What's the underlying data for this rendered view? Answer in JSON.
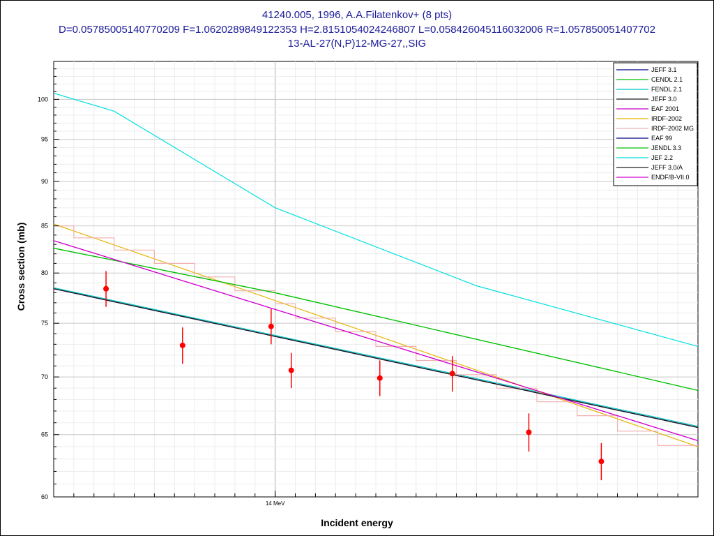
{
  "chart_data": {
    "type": "line",
    "title": "41240.005, 1996, A.A.Filatenkov+ (8 pts)",
    "subtitle": "D=0.05785005140770209 F=1.0620289849122353 H=2.8151054024246807 L=0.058426045116032006 R=1.057850051407702",
    "subtitle2": "13-AL-27(N,P)12-MG-27,,SIG",
    "xlabel": "Incident energy",
    "ylabel": "Cross section (mb)",
    "x_unit": "MeV",
    "xlim": [
      13.45,
      15.05
    ],
    "ylim": [
      60,
      105
    ],
    "yscale": "log",
    "grid": true,
    "legend_position": "top-right",
    "x_tick_labels": [
      {
        "value": 14,
        "label": "14 MeV"
      }
    ],
    "y_ticks": [
      60,
      65,
      70,
      75,
      80,
      85,
      90,
      95,
      100
    ],
    "series": [
      {
        "name": "JEFF 3.1",
        "color": "#00008b",
        "x": [
          13.45,
          15.05
        ],
        "y": [
          78.4,
          65.6
        ]
      },
      {
        "name": "CENDL 2.1",
        "color": "#00c000",
        "x": [
          13.45,
          14.0,
          15.05
        ],
        "y": [
          82.6,
          78.0,
          68.8
        ]
      },
      {
        "name": "FENDL 2.1",
        "color": "#00c8c8",
        "x": [
          13.45,
          15.05
        ],
        "y": [
          78.5,
          65.7
        ]
      },
      {
        "name": "JEFF 3.0",
        "color": "#1a1a1a",
        "x": [
          13.45,
          15.05
        ],
        "y": [
          78.4,
          65.6
        ]
      },
      {
        "name": "EAF 2001",
        "color": "#c800c8",
        "x": [
          13.45,
          15.05
        ],
        "y": [
          83.4,
          64.5
        ]
      },
      {
        "name": "IRDF-2002",
        "color": "#e6b400",
        "x": [
          13.45,
          15.05
        ],
        "y": [
          85.2,
          64.0
        ]
      },
      {
        "name": "IRDF-2002 MG",
        "color": "#f0b0b0",
        "step": true,
        "x": [
          13.45,
          13.5,
          13.55,
          13.6,
          13.65,
          13.7,
          13.75,
          13.8,
          13.85,
          13.9,
          13.95,
          14.0,
          14.05,
          14.1,
          14.15,
          14.2,
          14.25,
          14.3,
          14.35,
          14.4,
          14.45,
          14.5,
          14.55,
          14.6,
          14.65,
          14.7,
          14.75,
          14.8,
          14.85,
          14.9,
          14.95,
          15.0,
          15.05
        ],
        "y": [
          85.0,
          83.7,
          83.7,
          82.4,
          82.4,
          81.0,
          81.0,
          79.6,
          79.6,
          78.2,
          78.2,
          76.9,
          75.5,
          75.5,
          74.2,
          74.2,
          72.8,
          72.8,
          71.5,
          71.5,
          70.2,
          70.2,
          69.0,
          69.0,
          67.8,
          67.8,
          66.6,
          66.6,
          65.3,
          65.3,
          64.1,
          64.1,
          64.1
        ]
      },
      {
        "name": "EAF 99",
        "color": "#000080",
        "x": [
          13.45,
          15.05
        ],
        "y": [
          78.4,
          65.6
        ]
      },
      {
        "name": "JENDL 3.3",
        "color": "#00c000",
        "x": [
          13.45,
          14.0,
          15.05
        ],
        "y": [
          82.6,
          78.0,
          68.8
        ]
      },
      {
        "name": "JEF 2.2",
        "color": "#00e0e0",
        "x": [
          13.45,
          13.6,
          14.0,
          14.5,
          15.05
        ],
        "y": [
          100.8,
          98.5,
          87.0,
          78.7,
          72.8
        ]
      },
      {
        "name": "JEFF 3.0/A",
        "color": "#202020",
        "x": [
          13.45,
          15.05
        ],
        "y": [
          78.4,
          65.6
        ]
      },
      {
        "name": "ENDF/B-VII.0",
        "color": "#d000d0",
        "x": [
          13.45,
          15.05
        ],
        "y": [
          83.4,
          64.5
        ]
      }
    ],
    "measurements": {
      "color": "#ff0000",
      "points": [
        {
          "x": 13.58,
          "y": 78.4,
          "err": 1.8
        },
        {
          "x": 13.77,
          "y": 72.9,
          "err": 1.7
        },
        {
          "x": 13.99,
          "y": 74.7,
          "err": 1.7
        },
        {
          "x": 14.04,
          "y": 70.6,
          "err": 1.6
        },
        {
          "x": 14.26,
          "y": 69.9,
          "err": 1.6
        },
        {
          "x": 14.44,
          "y": 70.3,
          "err": 1.6
        },
        {
          "x": 14.63,
          "y": 65.2,
          "err": 1.6
        },
        {
          "x": 14.81,
          "y": 62.8,
          "err": 1.5
        }
      ]
    }
  }
}
